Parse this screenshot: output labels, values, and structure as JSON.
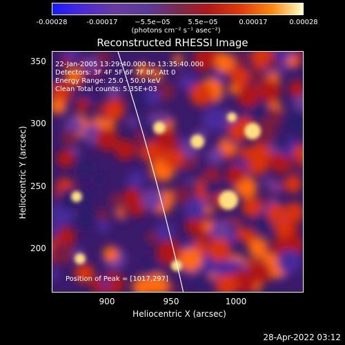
{
  "colorbar": {
    "ticks": [
      "-0.00028",
      "-0.00017",
      "−5.5e−05",
      "5.5e−05",
      "0.00017",
      "0.00028"
    ],
    "units": "(photons cm⁻² s⁻¹ asec⁻²)"
  },
  "title": "Reconstructed RHESSI Image",
  "info": {
    "line1": "22-Jan-2005 13:29:40.000 to 13:35:40.000",
    "line2": "Detectors: 3F 4F 5F 6F 7F 8F, Att 0",
    "line3": "Energy Range: 25.0 - 50.0 keV",
    "line4": "Clean    Total counts: 5.35E+03",
    "peak": "Position of Peak = [1017,297]"
  },
  "axes": {
    "xlabel": "Heliocentric X (arcsec)",
    "ylabel": "Heliocentric Y (arcsec)",
    "xticks": [
      "900",
      "950",
      "1000"
    ],
    "yticks": [
      "350",
      "300",
      "250",
      "200"
    ],
    "xlim": [
      860,
      1045
    ],
    "ylim": [
      165,
      358
    ]
  },
  "timestamp": "28-Apr-2022 03:12",
  "colors": {
    "background": "#000000",
    "colormap": [
      "#1a1aff",
      "#5a3a9a",
      "#b01818",
      "#ff8a10",
      "#ffffc8"
    ]
  }
}
